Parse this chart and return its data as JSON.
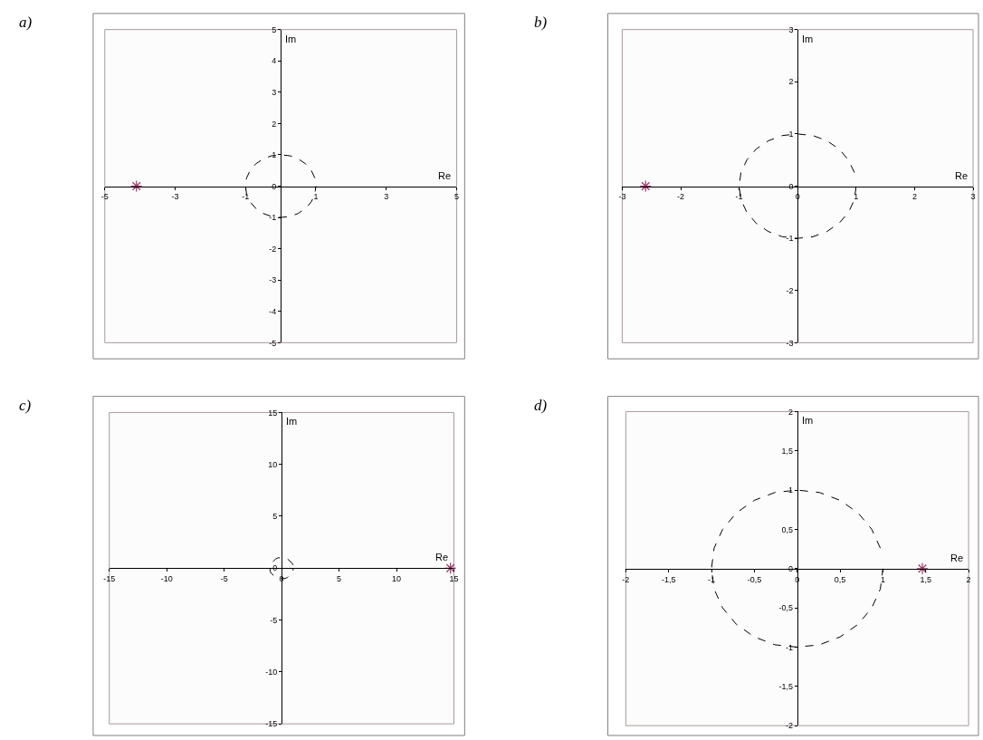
{
  "chart_data": [
    {
      "type": "scatter",
      "title": "a)",
      "xlabel": "Re",
      "ylabel": "Im",
      "xlim": [
        -5,
        5
      ],
      "ylim": [
        -5,
        5
      ],
      "xticks": [
        -5,
        -3,
        -1,
        1,
        3,
        5
      ],
      "yticks": [
        -5,
        -4,
        -3,
        -2,
        -1,
        0,
        1,
        2,
        3,
        4,
        5
      ],
      "grid": false,
      "series": [
        {
          "type": "line",
          "line_style": "dashed",
          "marker": "none",
          "color": "#000000",
          "x": [
            0.97,
            0.87,
            0.71,
            0.5,
            0.26,
            0,
            -0.26,
            -0.5,
            -0.71,
            -0.87,
            -0.97,
            -1,
            -0.97,
            -0.87,
            -0.71,
            -0.5,
            -0.26,
            0,
            0.26,
            0.5,
            0.71,
            0.87,
            0.97,
            1
          ],
          "values": [
            0.26,
            0.5,
            0.71,
            0.87,
            0.97,
            1,
            0.97,
            0.87,
            0.71,
            0.5,
            0.26,
            0,
            -0.26,
            -0.5,
            -0.71,
            -0.87,
            -0.97,
            -1,
            -0.97,
            -0.87,
            -0.71,
            -0.5,
            -0.26,
            0
          ]
        },
        {
          "type": "scatter",
          "marker": "cross",
          "color": "#993366",
          "x": [
            -4.1
          ],
          "values": [
            0
          ]
        }
      ]
    },
    {
      "type": "scatter",
      "title": "b)",
      "xlabel": "Re",
      "ylabel": "Im",
      "xlim": [
        -3,
        3
      ],
      "ylim": [
        -3,
        3
      ],
      "xticks": [
        -3,
        -2,
        -1,
        0,
        1,
        2,
        3
      ],
      "yticks": [
        -3,
        -2,
        -1,
        0,
        1,
        2,
        3
      ],
      "grid": false,
      "series": [
        {
          "type": "line",
          "line_style": "dashed",
          "marker": "none",
          "color": "#000000",
          "x": [
            0.97,
            0.87,
            0.71,
            0.5,
            0.26,
            0,
            -0.26,
            -0.5,
            -0.71,
            -0.87,
            -0.97,
            -1,
            -0.97,
            -0.87,
            -0.71,
            -0.5,
            -0.26,
            0,
            0.26,
            0.5,
            0.71,
            0.87,
            0.97,
            1
          ],
          "values": [
            0.26,
            0.5,
            0.71,
            0.87,
            0.97,
            1,
            0.97,
            0.87,
            0.71,
            0.5,
            0.26,
            0,
            -0.26,
            -0.5,
            -0.71,
            -0.87,
            -0.97,
            -1,
            -0.97,
            -0.87,
            -0.71,
            -0.5,
            -0.26,
            0
          ]
        },
        {
          "type": "scatter",
          "marker": "cross",
          "color": "#993366",
          "x": [
            -2.6
          ],
          "values": [
            0
          ]
        }
      ]
    },
    {
      "type": "scatter",
      "title": "c)",
      "xlabel": "Re",
      "ylabel": "Im",
      "xlim": [
        -15,
        15
      ],
      "ylim": [
        -15,
        15
      ],
      "xticks": [
        -15,
        -10,
        -5,
        0,
        5,
        10,
        15
      ],
      "yticks": [
        -15,
        -10,
        -5,
        0,
        5,
        10,
        15
      ],
      "grid": false,
      "series": [
        {
          "type": "line",
          "line_style": "dashed",
          "marker": "none",
          "color": "#000000",
          "x": [
            1,
            0.9,
            0.7,
            0.5,
            0.3,
            0,
            -0.3,
            -0.5,
            -0.7,
            -0.9,
            -1,
            -1,
            -1,
            -0.9,
            -0.7,
            -0.5,
            -0.3,
            0,
            0.3,
            0.5,
            0.7,
            0.9,
            1,
            1
          ],
          "values": [
            0.3,
            0.5,
            0.7,
            0.9,
            1,
            1,
            1,
            0.9,
            0.7,
            0.5,
            0.3,
            0,
            -0.3,
            -0.5,
            -0.7,
            -0.9,
            -1,
            -1,
            -1,
            -0.9,
            -0.7,
            -0.5,
            -0.3,
            0
          ]
        },
        {
          "type": "scatter",
          "marker": "cross",
          "color": "#993366",
          "x": [
            14.7
          ],
          "values": [
            0
          ]
        }
      ]
    },
    {
      "type": "scatter",
      "title": "d)",
      "xlabel": "Re",
      "ylabel": "Im",
      "xlim": [
        -2,
        2
      ],
      "ylim": [
        -2,
        2
      ],
      "xticks": [
        -2,
        {
          "value": -1.5,
          "label": "-1,5"
        },
        -1,
        {
          "value": -0.5,
          "label": "-0,5"
        },
        0,
        {
          "value": 0.5,
          "label": "0,5"
        },
        1,
        {
          "value": 1.5,
          "label": "1,5"
        },
        2
      ],
      "yticks": [
        -2,
        {
          "value": -1.5,
          "label": "-1,5"
        },
        -1,
        {
          "value": -0.5,
          "label": "-0,5"
        },
        0,
        {
          "value": 0.5,
          "label": "0,5"
        },
        1,
        {
          "value": 1.5,
          "label": "1,5"
        },
        2
      ],
      "grid": false,
      "series": [
        {
          "type": "line",
          "line_style": "dashed",
          "marker": "none",
          "color": "#000000",
          "x": [
            0.97,
            0.87,
            0.71,
            0.5,
            0.26,
            0,
            -0.26,
            -0.5,
            -0.71,
            -0.87,
            -0.97,
            -1,
            -0.97,
            -0.87,
            -0.71,
            -0.5,
            -0.26,
            0,
            0.26,
            0.5,
            0.71,
            0.87,
            0.97,
            1
          ],
          "values": [
            0.26,
            0.5,
            0.71,
            0.87,
            0.97,
            1,
            0.97,
            0.87,
            0.71,
            0.5,
            0.26,
            0,
            -0.26,
            -0.5,
            -0.71,
            -0.87,
            -0.97,
            -1,
            -0.97,
            -0.87,
            -0.71,
            -0.5,
            -0.26,
            0
          ]
        },
        {
          "type": "scatter",
          "marker": "cross",
          "color": "#993366",
          "x": [
            1.46
          ],
          "values": [
            0
          ]
        }
      ]
    }
  ]
}
